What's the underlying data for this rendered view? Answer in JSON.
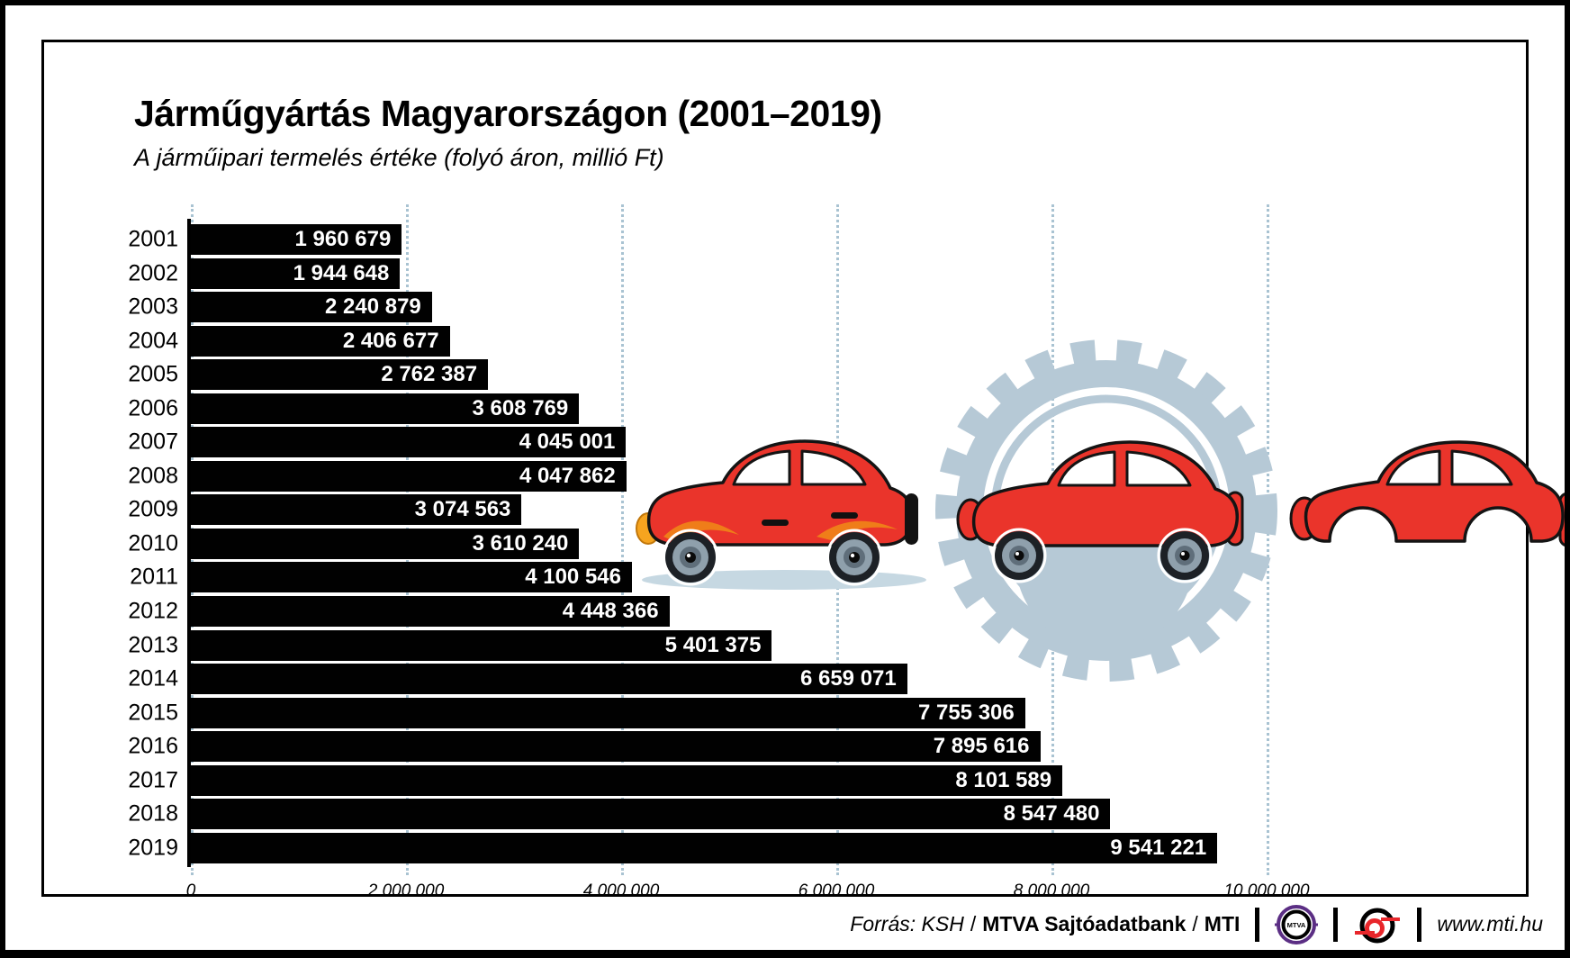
{
  "title": "Járműgyártás Magyarországon (2001–2019)",
  "subtitle": "A járműipari termelés értéke (folyó áron, millió Ft)",
  "chart_data": {
    "type": "bar",
    "orientation": "horizontal",
    "title": "Járműgyártás Magyarországon (2001–2019)",
    "subtitle": "A járműipari termelés értéke (folyó áron, millió Ft)",
    "categories": [
      "2001",
      "2002",
      "2003",
      "2004",
      "2005",
      "2006",
      "2007",
      "2008",
      "2009",
      "2010",
      "2011",
      "2012",
      "2013",
      "2014",
      "2015",
      "2016",
      "2017",
      "2018",
      "2019"
    ],
    "values": [
      1960679,
      1944648,
      2240879,
      2406677,
      2762387,
      3608769,
      4045001,
      4047862,
      3074563,
      3610240,
      4100546,
      4448366,
      5401375,
      6659071,
      7755306,
      7895616,
      8101589,
      8547480,
      9541221
    ],
    "value_labels": [
      "1 960 679",
      "1 944 648",
      "2 240 879",
      "2 406 677",
      "2 762 387",
      "3 608 769",
      "4 045 001",
      "4 047 862",
      "3 074 563",
      "3 610 240",
      "4 100 546",
      "4 448 366",
      "5 401 375",
      "6 659 071",
      "7 755 306",
      "7 895 616",
      "8 101 589",
      "8 547 480",
      "9 541 221"
    ],
    "xlim": [
      0,
      10000000
    ],
    "x_ticks": [
      0,
      2000000,
      4000000,
      6000000,
      8000000,
      10000000
    ],
    "x_tick_labels": [
      "0",
      "2 000 000",
      "4 000 000",
      "6 000 000",
      "8 000 000",
      "10 000 000"
    ],
    "xlabel": "",
    "ylabel": "",
    "grid": "vertical-dotted",
    "legend": "none",
    "bar_color": "#010101",
    "value_label_color": "#ffffff",
    "gridline_color": "#a9c3d2"
  },
  "footer": {
    "source_italic": "Forrás: KSH",
    "slash": "/",
    "source_bold": "MTVA Sajtóadatbank",
    "source_bold2": "MTI",
    "mtva_logo_text": "MTVA",
    "website": "www.mti.hu"
  },
  "colors": {
    "car_red": "#ea342b",
    "gear_blue": "#b6c9d6",
    "shadow_blue": "#c6d8e2",
    "headlight_orange": "#f6a41f",
    "mtva_purple": "#5b2e84",
    "mti_red": "#e8262b"
  }
}
